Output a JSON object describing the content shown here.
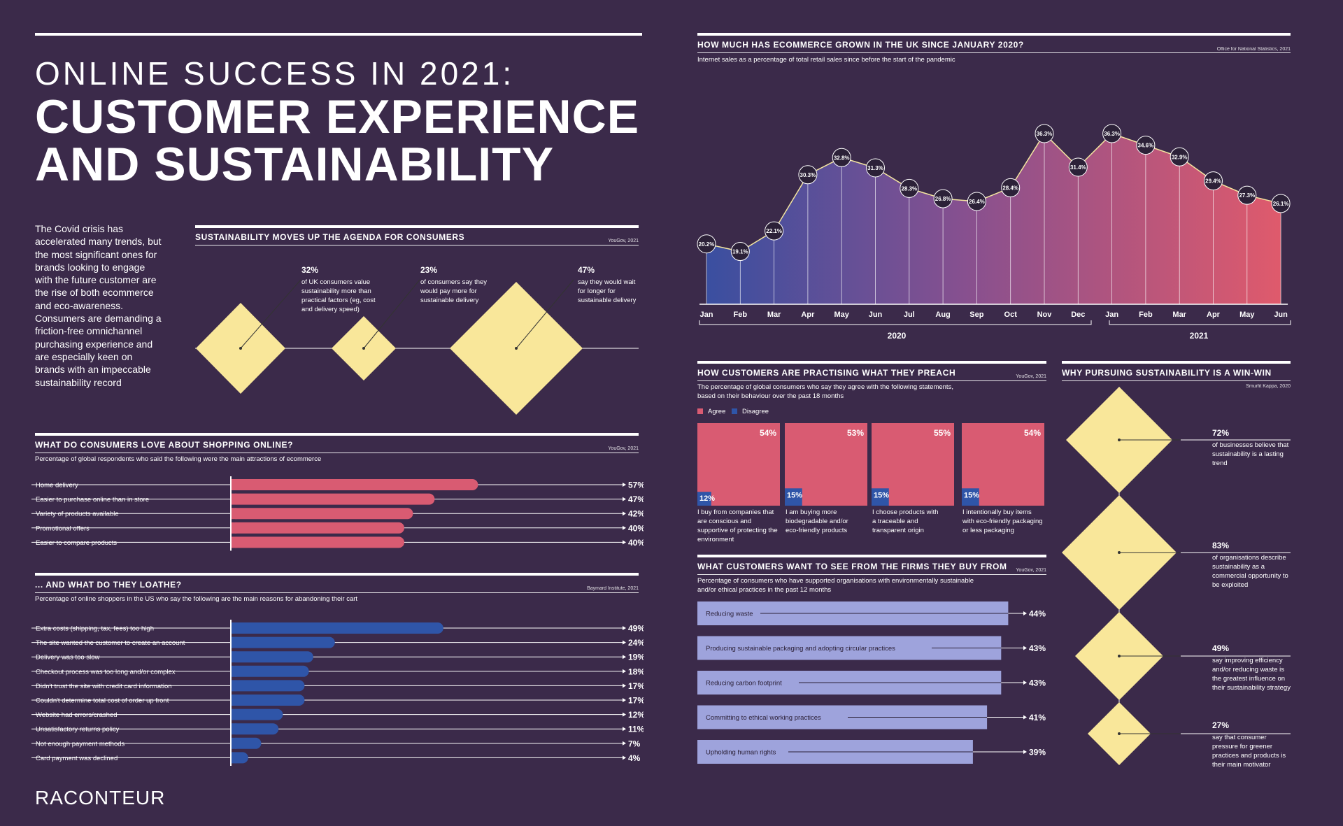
{
  "header": {
    "title_line1": "ONLINE SUCCESS IN 2021:",
    "title_line2": "CUSTOMER EXPERIENCE",
    "title_line3": "AND SUSTAINABILITY",
    "intro": "The Covid crisis has accelerated many trends, but the most significant ones for brands looking to engage with the future customer are the rise of both ecommerce and eco-awareness. Consumers are demanding a friction-free omnichannel purchasing experience and are especially keen on brands with an impeccable sustainability record"
  },
  "colors": {
    "background": "#3b2a4a",
    "pink": "#d95b72",
    "blue": "#2f55a8",
    "yellow": "#f9e79a",
    "lavender": "#9ea3dc"
  },
  "sustainability": {
    "title": "SUSTAINABILITY MOVES UP THE AGENDA FOR CONSUMERS",
    "source": "YouGov, 2021",
    "items": [
      {
        "pct": "32%",
        "text": "of UK consumers value sustainability more than practical factors (eg, cost and delivery speed)",
        "value": 32
      },
      {
        "pct": "23%",
        "text": "of consumers say they would pay more for sustainable delivery",
        "value": 23
      },
      {
        "pct": "47%",
        "text": "say they would wait for longer for sustainable delivery",
        "value": 47
      }
    ]
  },
  "love": {
    "title": "WHAT DO CONSUMERS LOVE ABOUT SHOPPING ONLINE?",
    "source": "YouGov, 2021",
    "subtitle": "Percentage of global respondents who said the following were the main attractions of ecommerce"
  },
  "loathe": {
    "title": "... AND WHAT DO THEY LOATHE?",
    "source": "Baymard Institute, 2021",
    "subtitle": "Percentage of online shoppers in the US who say the following are the main reasons for abandoning their cart"
  },
  "growth": {
    "title": "HOW MUCH HAS ECOMMERCE GROWN IN THE UK SINCE JANUARY 2020?",
    "source": "Office for National Statistics, 2021",
    "subtitle": "Internet sales as a percentage of total retail sales since before the start of the pandemic",
    "year_labels": [
      "2020",
      "2021"
    ]
  },
  "practise": {
    "title": "HOW CUSTOMERS ARE PRACTISING WHAT THEY PREACH",
    "source": "YouGov, 2021",
    "subtitle": "The percentage of global consumers who say they agree with the following statements, based on their behaviour over the past 18 months",
    "legend": [
      "Agree",
      "Disagree"
    ]
  },
  "want": {
    "title": "WHAT CUSTOMERS WANT TO SEE FROM THE FIRMS THEY BUY FROM",
    "source": "YouGov, 2021",
    "subtitle": "Percentage of consumers who have supported organisations with environmentally sustainable and/or ethical practices in the past 12 months"
  },
  "winwin": {
    "title": "WHY PURSUING SUSTAINABILITY IS A WIN-WIN",
    "source": "Smurfit Kappa, 2020",
    "items": [
      {
        "pct": "72%",
        "text": "of businesses believe that sustainability is a lasting trend",
        "value": 72
      },
      {
        "pct": "83%",
        "text": "of organisations describe sustainability as a commercial opportunity to be exploited",
        "value": 83
      },
      {
        "pct": "49%",
        "text": "say improving efficiency and/or reducing waste is the greatest influence on their sustainability strategy",
        "value": 49
      },
      {
        "pct": "27%",
        "text": "say that consumer pressure for greener practices and products is their main motivator",
        "value": 27
      }
    ]
  },
  "brand": {
    "logo": "RACONTEUR"
  },
  "chart_data": [
    {
      "type": "bar",
      "id": "love",
      "categories": [
        "Home delivery",
        "Easier to purchase online than in store",
        "Variety of products available",
        "Promotional offers",
        "Easier to compare products"
      ],
      "values": [
        57,
        47,
        42,
        40,
        40
      ],
      "labels": [
        "57%",
        "47%",
        "42%",
        "40%",
        "40%"
      ]
    },
    {
      "type": "bar",
      "id": "loathe",
      "categories": [
        "Extra costs (shipping, tax, fees) too high",
        "The site wanted the customer to create an account",
        "Delivery was too slow",
        "Checkout process was too long and/or complex",
        "Didn't trust the site with credit card information",
        "Couldn't determine total cost of order up front",
        "Website had errors/crashed",
        "Unsatisfactory returns policy",
        "Not enough payment methods",
        "Card payment was declined"
      ],
      "values": [
        49,
        24,
        19,
        18,
        17,
        17,
        12,
        11,
        7,
        4
      ],
      "labels": [
        "49%",
        "24%",
        "19%",
        "18%",
        "17%",
        "17%",
        "12%",
        "11%",
        "7%",
        "4%"
      ]
    },
    {
      "type": "area",
      "id": "growth",
      "x": [
        "Jan",
        "Feb",
        "Mar",
        "Apr",
        "May",
        "Jun",
        "Jul",
        "Aug",
        "Sep",
        "Oct",
        "Nov",
        "Dec",
        "Jan",
        "Feb",
        "Mar",
        "Apr",
        "May",
        "Jun"
      ],
      "values": [
        20.2,
        19.1,
        22.1,
        30.3,
        32.8,
        31.3,
        28.3,
        26.8,
        26.4,
        28.4,
        36.3,
        31.4,
        36.3,
        34.6,
        32.9,
        29.4,
        27.3,
        26.1
      ],
      "labels": [
        "20.2%",
        "19.1%",
        "22.1%",
        "30.3%",
        "32.8%",
        "31.3%",
        "28.3%",
        "26.8%",
        "26.4%",
        "28.4%",
        "36.3%",
        "31.4%",
        "36.3%",
        "34.6%",
        "32.9%",
        "29.4%",
        "27.3%",
        "26.1%"
      ]
    },
    {
      "type": "bar",
      "id": "practise",
      "categories": [
        "I buy from companies that are conscious and supportive of protecting the environment",
        "I am buying more biodegradable and/or eco-friendly products",
        "I choose products with a traceable and transparent origin",
        "I intentionally buy items with eco-friendly packaging or less packaging"
      ],
      "series": [
        {
          "name": "Agree",
          "values": [
            54,
            53,
            55,
            54
          ],
          "labels": [
            "54%",
            "53%",
            "55%",
            "54%"
          ]
        },
        {
          "name": "Disagree",
          "values": [
            12,
            15,
            15,
            15
          ],
          "labels": [
            "12%",
            "15%",
            "15%",
            "15%"
          ]
        }
      ]
    },
    {
      "type": "bar",
      "id": "want",
      "categories": [
        "Reducing waste",
        "Producing sustainable packaging and adopting circular practices",
        "Reducing carbon footprint",
        "Committing to ethical working practices",
        "Upholding human rights"
      ],
      "values": [
        44,
        43,
        43,
        41,
        39
      ],
      "labels": [
        "44%",
        "43%",
        "43%",
        "41%",
        "39%"
      ]
    }
  ]
}
